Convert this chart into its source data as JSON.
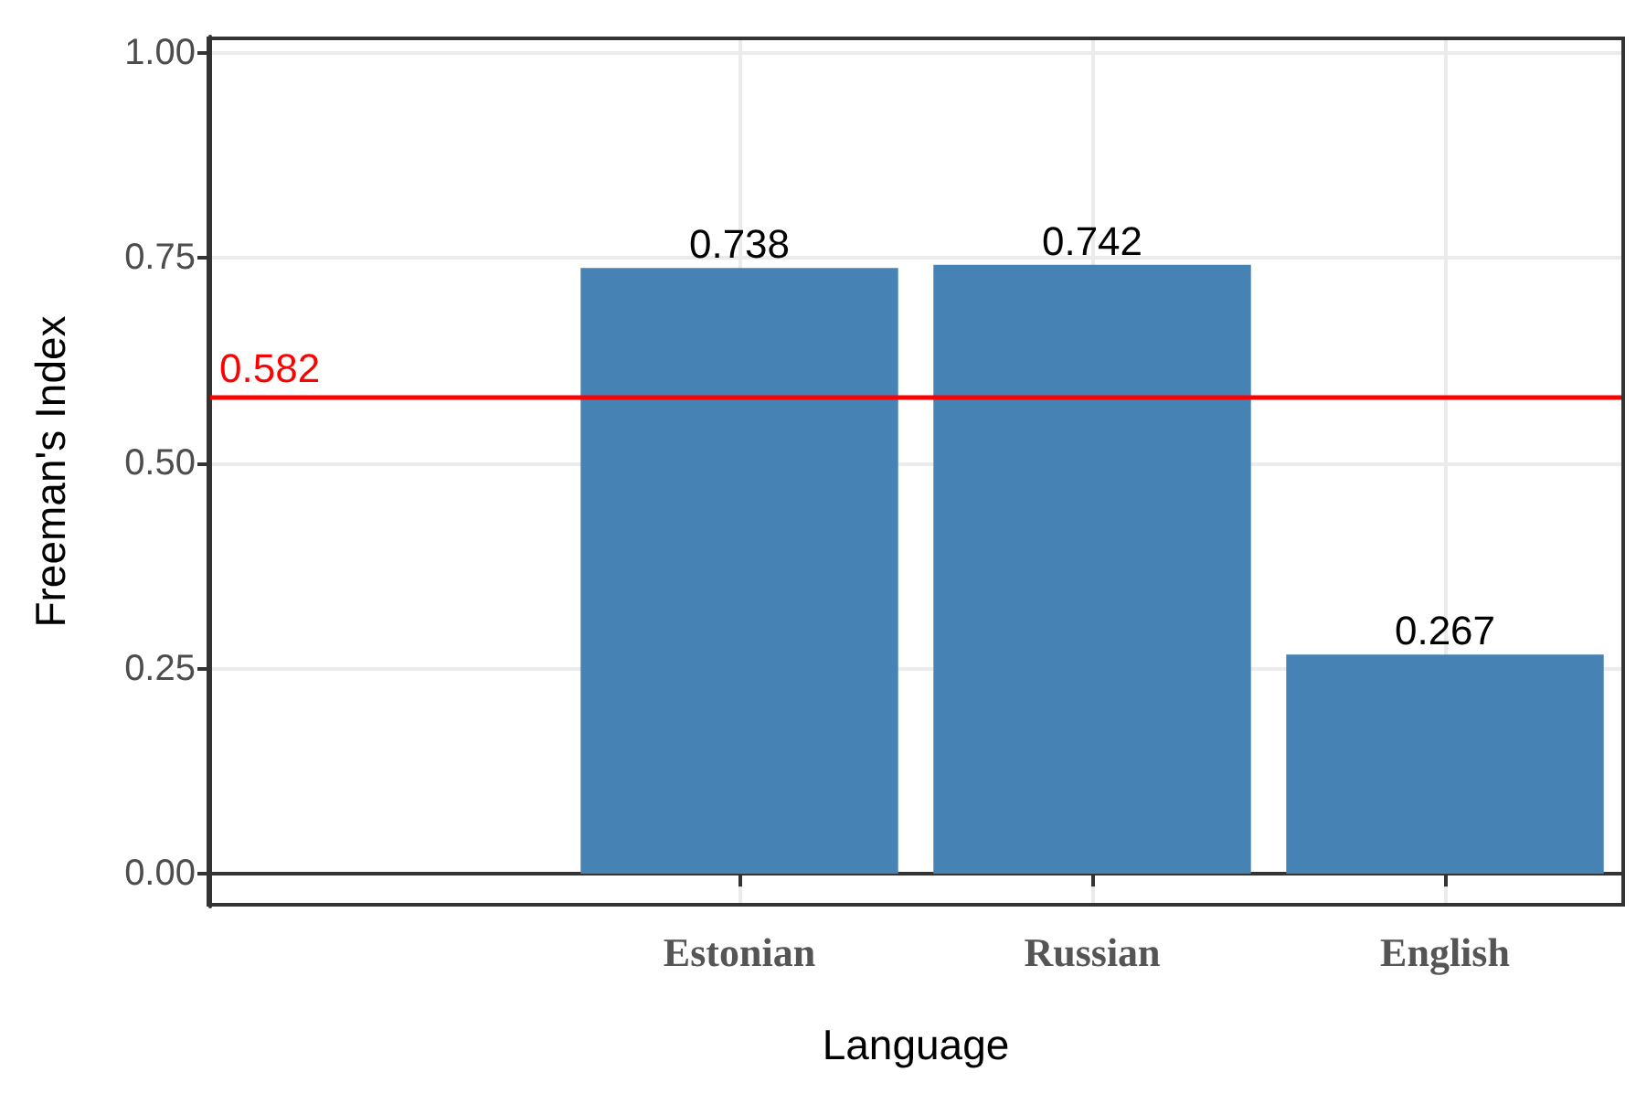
{
  "chart_data": {
    "type": "bar",
    "xlabel": "Language",
    "ylabel": "Freeman's Index",
    "categories": [
      null,
      "Estonian",
      "Russian",
      "English"
    ],
    "values": [
      null,
      0.738,
      0.742,
      0.267
    ],
    "color": "#4682b4",
    "data_labels": true,
    "ylim": [
      -0.04,
      1.02
    ],
    "yticks": [
      {
        "value": 0,
        "label": "0.00"
      },
      0.25,
      {
        "value": 0.5,
        "label": "0.50"
      },
      0.75,
      {
        "value": 1,
        "label": "1.00"
      }
    ],
    "ref_lines": [
      {
        "axis": "y",
        "value": 0.582,
        "label": "0.582",
        "color": "#ff0000",
        "line_style": "solid"
      }
    ],
    "grid": true
  }
}
